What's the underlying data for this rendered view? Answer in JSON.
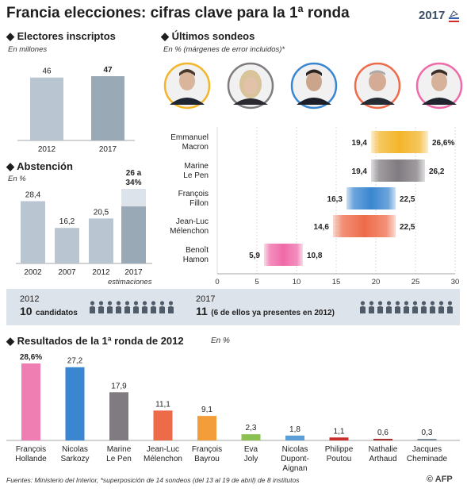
{
  "title": "Francia elecciones: cifras clave para la 1ª ronda",
  "badge_text": "2017",
  "colors": {
    "grey_bar": "#b9c6d2",
    "grey_bar_dark": "#9aa9b6",
    "macron": "#f3b52a",
    "lepen": "#807b80",
    "fillon": "#3a86d0",
    "melenchon": "#ee6b4a",
    "hamon": "#ef6aa8",
    "band": "#dde3ea"
  },
  "electores": {
    "heading": "Electores inscriptos",
    "unit": "En millones"
  },
  "abstencion": {
    "heading": "Abstención",
    "unit": "En %",
    "note": "estimaciones"
  },
  "sondeos": {
    "heading": "Últimos sondeos",
    "unit": "En %  (márgenes de error incluidos)*"
  },
  "candidatos": {
    "y2012_year": "2012",
    "y2012_count": "10",
    "y2012_text": "candidatos",
    "y2017_year": "2017",
    "y2017_count": "11",
    "y2017_text": "(6 de ellos ya presentes en 2012)",
    "n2012": 10,
    "n2017": 11
  },
  "resultados": {
    "heading": "Resultados de la 1ª ronda de 2012",
    "unit": "En %"
  },
  "footer": "Fuentes: Ministerio del Interior, *superposición de 14 sondeos (del 13 al 19 de abril) de 8 institutos",
  "credit": "© AFP",
  "chart_data": [
    {
      "type": "bar",
      "title": "Electores inscriptos",
      "categories": [
        "2012",
        "2017"
      ],
      "values": [
        46,
        47
      ],
      "value_labels": [
        "46",
        "47"
      ],
      "ylabel": "En millones"
    },
    {
      "type": "bar",
      "title": "Abstención",
      "categories": [
        "2002",
        "2007",
        "2012",
        "2017"
      ],
      "values": [
        28.4,
        16.2,
        20.5,
        34
      ],
      "ranges": [
        null,
        null,
        null,
        [
          26,
          34
        ]
      ],
      "value_labels": [
        "28,4",
        "16,2",
        "20,5",
        "26 a 34%"
      ],
      "ylabel": "En %",
      "annotations": [
        "estimaciones"
      ]
    },
    {
      "type": "bar",
      "subtype": "range",
      "title": "Últimos sondeos",
      "categories": [
        "Emmanuel Macron",
        "Marine Le Pen",
        "François Fillon",
        "Jean-Luc Mélenchon",
        "Benoît Hamon"
      ],
      "category_lines": [
        [
          "Emmanuel",
          "Macron"
        ],
        [
          "Marine",
          "Le Pen"
        ],
        [
          "François",
          "Fillon"
        ],
        [
          "Jean-Luc",
          "Mélenchon"
        ],
        [
          "Benoît",
          "Hamon"
        ]
      ],
      "low": [
        19.4,
        19.4,
        16.3,
        14.6,
        5.9
      ],
      "high": [
        26.6,
        26.2,
        22.5,
        22.5,
        10.8
      ],
      "low_labels": [
        "19,4",
        "19,4",
        "16,3",
        "14,6",
        "5,9"
      ],
      "high_labels": [
        "26,6%",
        "26,2",
        "22,5",
        "22,5",
        "10,8"
      ],
      "colors": [
        "#f3b52a",
        "#807b80",
        "#3a86d0",
        "#ee6b4a",
        "#ef6aa8"
      ],
      "xlim": [
        0,
        30
      ],
      "xticks": [
        "0",
        "5",
        "10",
        "15",
        "20",
        "25",
        "30"
      ],
      "xlabel": "",
      "ylabel": "En %  (márgenes de error incluidos)*"
    },
    {
      "type": "bar",
      "title": "Resultados de la 1ª ronda de 2012",
      "categories": [
        "François Hollande",
        "Nicolas Sarkozy",
        "Marine Le Pen",
        "Jean-Luc Mélenchon",
        "François Bayrou",
        "Eva Joly",
        "Nicolas Dupont-Aignan",
        "Philippe Poutou",
        "Nathalie Arthaud",
        "Jacques Cheminade"
      ],
      "category_lines": [
        [
          "François",
          "Hollande"
        ],
        [
          "Nicolas",
          "Sarkozy"
        ],
        [
          "Marine",
          "Le Pen"
        ],
        [
          "Jean-Luc",
          "Mélenchon"
        ],
        [
          "François",
          "Bayrou"
        ],
        [
          "Eva",
          "Joly"
        ],
        [
          "Nicolas",
          "Dupont-",
          "Aignan"
        ],
        [
          "Philippe",
          "Poutou"
        ],
        [
          "Nathalie",
          "Arthaud"
        ],
        [
          "Jacques",
          "Cheminade"
        ]
      ],
      "values": [
        28.6,
        27.2,
        17.9,
        11.1,
        9.1,
        2.3,
        1.8,
        1.1,
        0.6,
        0.3
      ],
      "value_labels": [
        "28,6%",
        "27,2",
        "17,9",
        "11,1",
        "9,1",
        "2,3",
        "1,8",
        "1,1",
        "0,6",
        "0,3"
      ],
      "colors": [
        "#ef7eb2",
        "#3a86d0",
        "#807b80",
        "#ee6b4a",
        "#f39c3a",
        "#8cc152",
        "#5b9fd6",
        "#c9302c",
        "#a83232",
        "#7f8c9a"
      ],
      "ylabel": "En %"
    }
  ]
}
